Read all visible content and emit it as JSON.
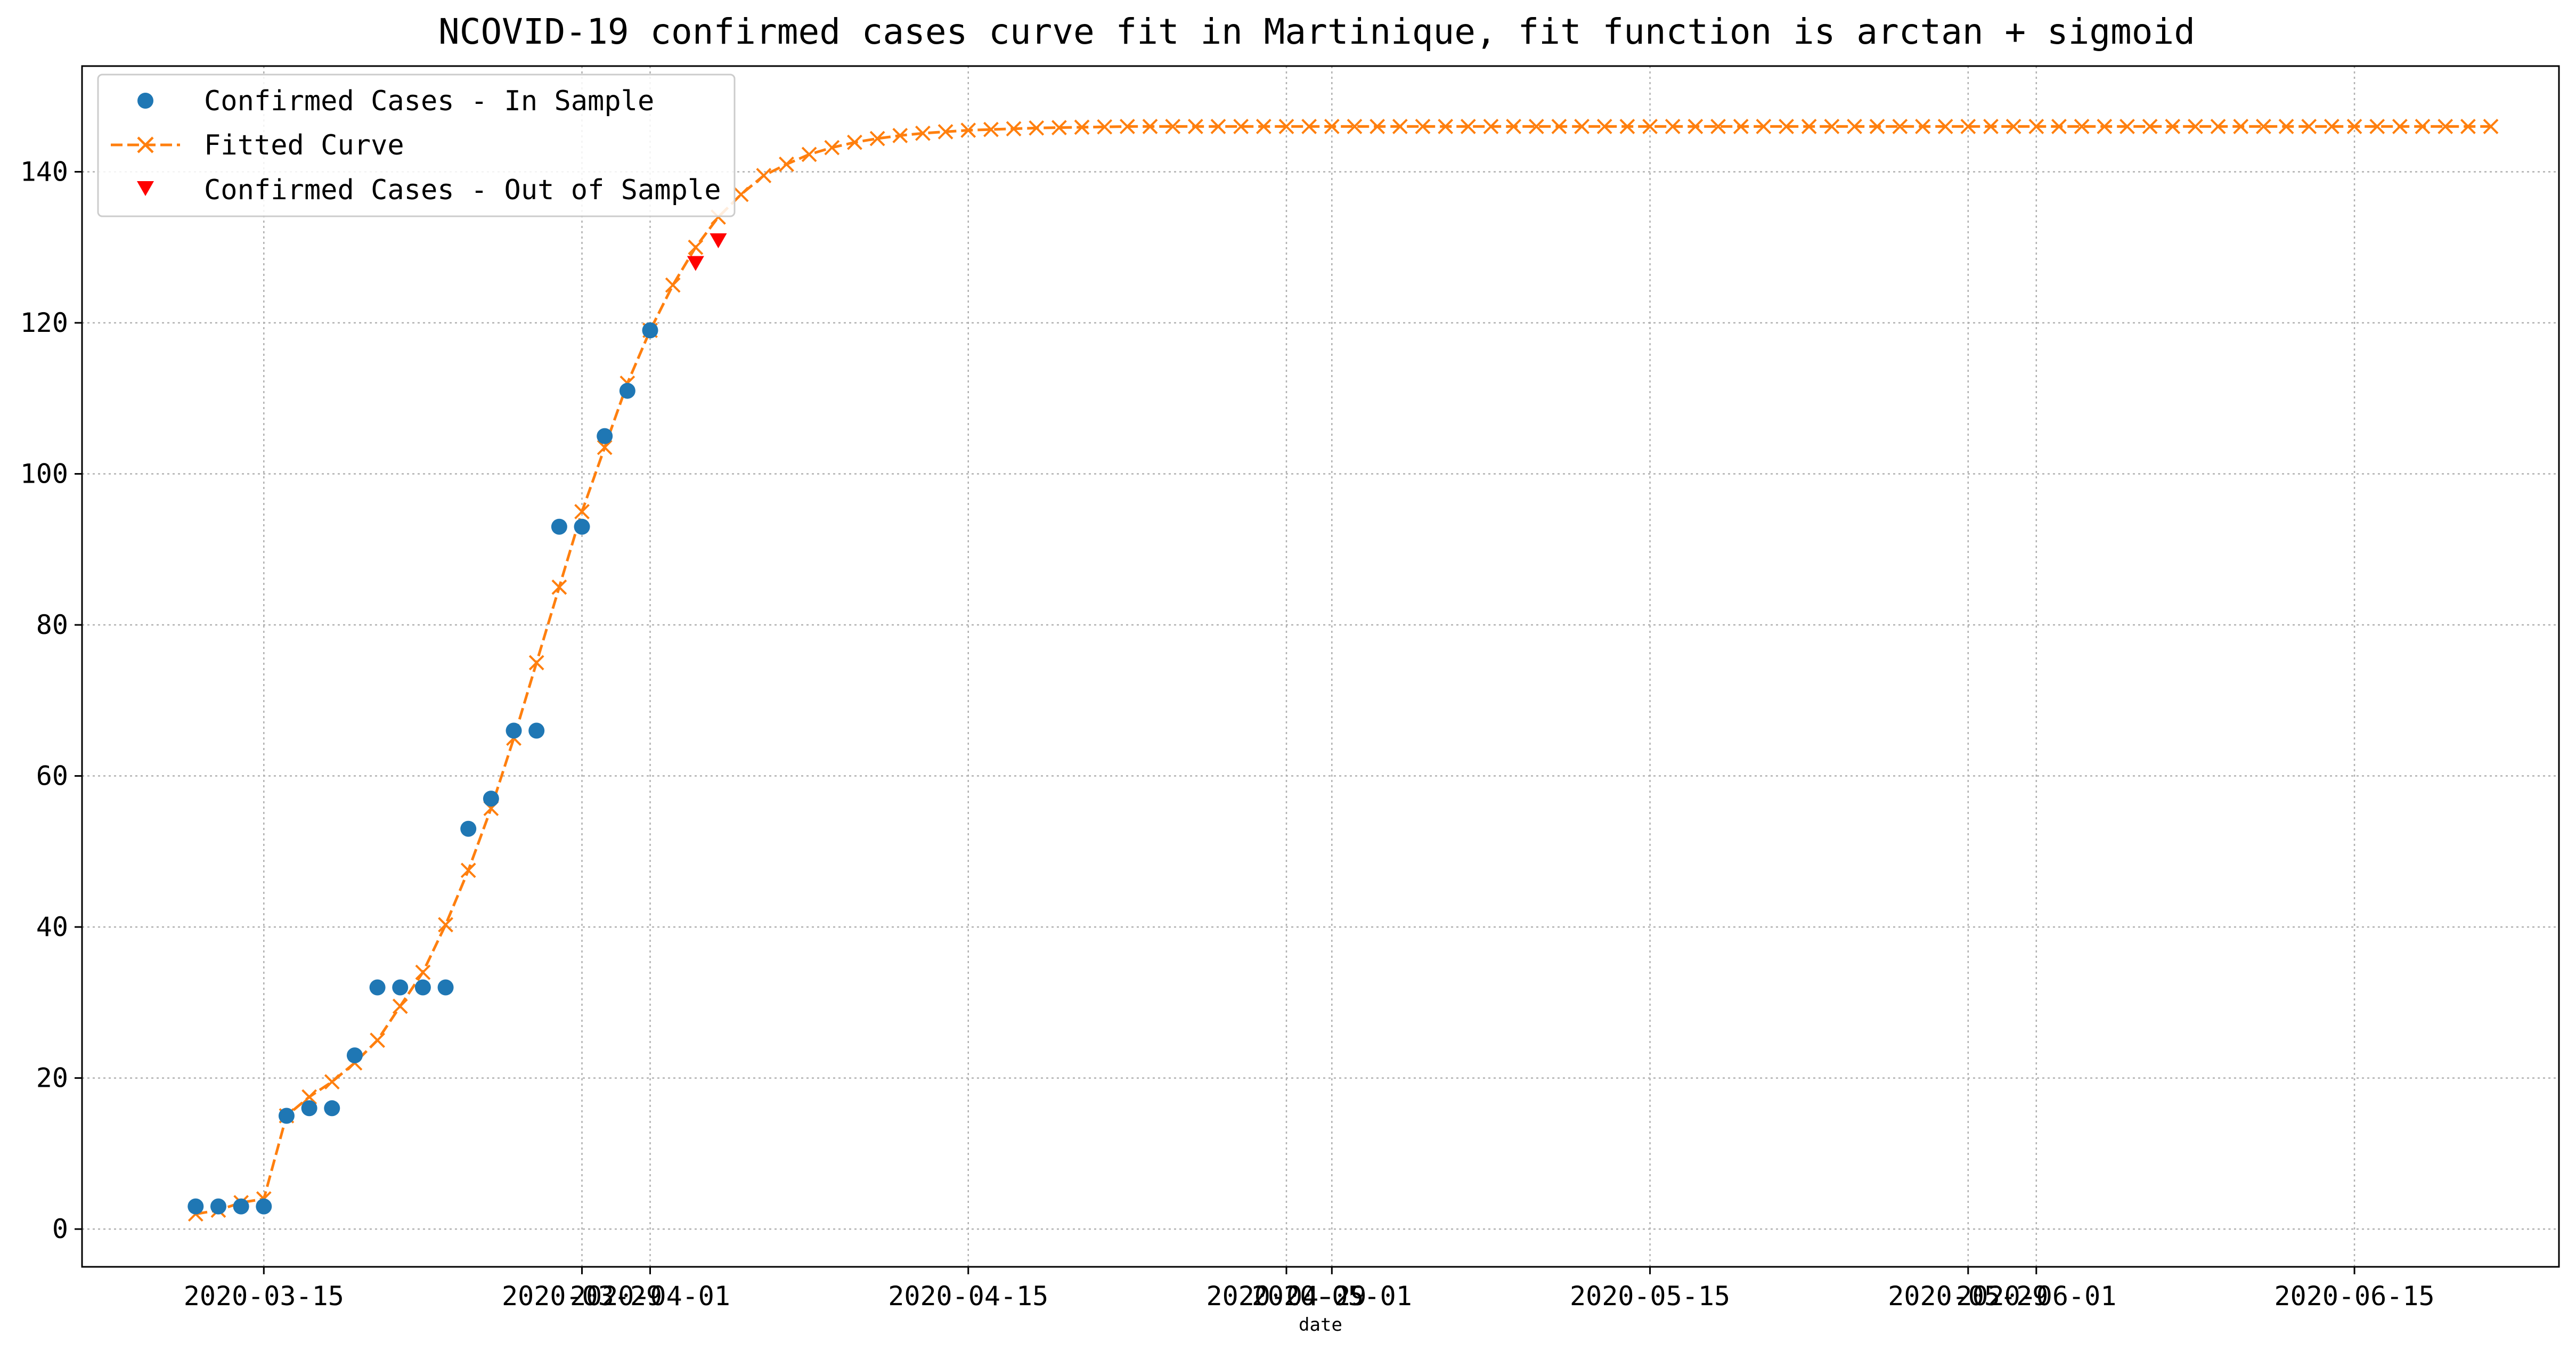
{
  "chart_data": {
    "type": "line",
    "title": "NCOVID-19 confirmed cases curve fit in Martinique, fit function is arctan + sigmoid",
    "xlabel": "date",
    "ylabel": "",
    "x_ticks": [
      {
        "label": "2020-03-15",
        "date": "2020-03-15"
      },
      {
        "label": "2020-03-29",
        "date": "2020-03-29"
      },
      {
        "label": "2020-04-01",
        "date": "2020-04-01"
      },
      {
        "label": "2020-04-15",
        "date": "2020-04-15"
      },
      {
        "label": "2020-04-29",
        "date": "2020-04-29"
      },
      {
        "label": "2020-05-01",
        "date": "2020-05-01"
      },
      {
        "label": "2020-05-15",
        "date": "2020-05-15"
      },
      {
        "label": "2020-05-29",
        "date": "2020-05-29"
      },
      {
        "label": "2020-06-01",
        "date": "2020-06-01"
      },
      {
        "label": "2020-06-15",
        "date": "2020-06-15"
      }
    ],
    "y_ticks": [
      0,
      20,
      40,
      60,
      80,
      100,
      120,
      140
    ],
    "xlim": [
      "2020-03-07",
      "2020-06-24"
    ],
    "ylim": [
      -5,
      154
    ],
    "grid": true,
    "legend_position": "top-left",
    "series": [
      {
        "name": "Confirmed Cases - In Sample",
        "marker": "circle",
        "color": "#1f77b4",
        "points": [
          [
            "2020-03-12",
            3
          ],
          [
            "2020-03-13",
            3
          ],
          [
            "2020-03-14",
            3
          ],
          [
            "2020-03-15",
            3
          ],
          [
            "2020-03-16",
            15
          ],
          [
            "2020-03-17",
            16
          ],
          [
            "2020-03-18",
            16
          ],
          [
            "2020-03-19",
            23
          ],
          [
            "2020-03-20",
            32
          ],
          [
            "2020-03-21",
            32
          ],
          [
            "2020-03-22",
            32
          ],
          [
            "2020-03-23",
            32
          ],
          [
            "2020-03-24",
            53
          ],
          [
            "2020-03-25",
            57
          ],
          [
            "2020-03-26",
            66
          ],
          [
            "2020-03-27",
            66
          ],
          [
            "2020-03-28",
            93
          ],
          [
            "2020-03-29",
            93
          ],
          [
            "2020-03-30",
            105
          ],
          [
            "2020-03-31",
            111
          ],
          [
            "2020-04-01",
            119
          ]
        ]
      },
      {
        "name": "Fitted Curve",
        "marker": "x",
        "line": "dashed",
        "color": "#ff7f0e",
        "start": "2020-03-12",
        "values": [
          2,
          2.5,
          3.5,
          4,
          15,
          17.5,
          19.5,
          22,
          25,
          29.5,
          34,
          40.3,
          47.5,
          55.7,
          65,
          75,
          85,
          95,
          103.5,
          112,
          119,
          125,
          130,
          134,
          137,
          139.5,
          141,
          142.3,
          143.2,
          143.9,
          144.4,
          144.8,
          145.1,
          145.3,
          145.5,
          145.6,
          145.7,
          145.8,
          145.85,
          145.9,
          145.95,
          146,
          146,
          146,
          146,
          146,
          146,
          146,
          146,
          146,
          146,
          146,
          146,
          146,
          146,
          146,
          146,
          146,
          146,
          146,
          146,
          146,
          146,
          146,
          146,
          146,
          146,
          146,
          146,
          146,
          146,
          146,
          146,
          146,
          146,
          146,
          146,
          146,
          146,
          146,
          146,
          146,
          146,
          146,
          146,
          146,
          146,
          146,
          146,
          146,
          146,
          146,
          146,
          146,
          146,
          146,
          146,
          146,
          146,
          146,
          146,
          146
        ]
      },
      {
        "name": "Confirmed Cases - Out of Sample",
        "marker": "triangle-down",
        "color": "#ff0000",
        "points": [
          [
            "2020-04-03",
            128
          ],
          [
            "2020-04-04",
            131
          ]
        ]
      }
    ]
  }
}
